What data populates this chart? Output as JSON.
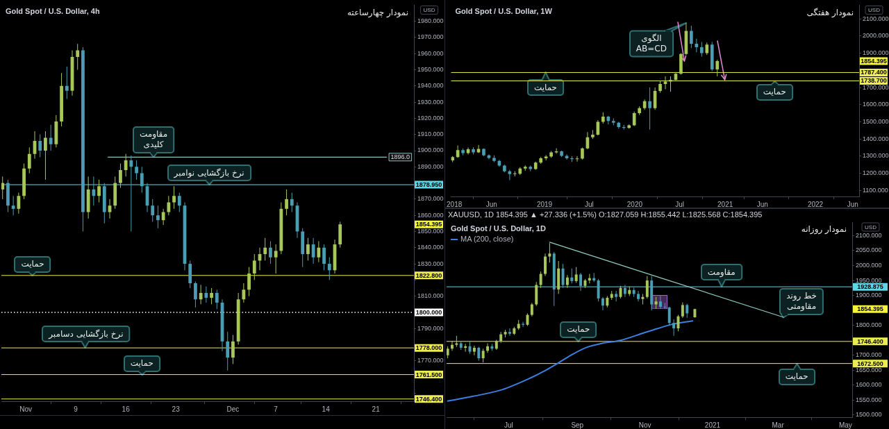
{
  "chart_data": [
    {
      "type": "candlestick",
      "title": "Gold Spot / U.S. Dollar, 4h",
      "subtitle": "نمودار چهارساعته",
      "ylabel": "USD",
      "xlim": [
        "2020-10-29T14:00",
        "2020-12-26T08:00"
      ],
      "xticks": [
        {
          "value": "2020-11-02",
          "label": "Nov"
        },
        {
          "value": "2020-11-09",
          "label": "9"
        },
        {
          "value": "2020-11-16",
          "label": "16"
        },
        {
          "value": "2020-11-23",
          "label": "23"
        },
        {
          "value": "2020-12-01",
          "label": "Dec"
        },
        {
          "value": "2020-12-07",
          "label": "7"
        },
        {
          "value": "2020-12-14",
          "label": "14"
        },
        {
          "value": "2020-12-21",
          "label": "21"
        }
      ],
      "ylim": [
        1745,
        1990
      ],
      "yticks": [
        {
          "value": 1750,
          "label": null
        },
        {
          "value": 1760,
          "label": null
        },
        {
          "value": 1770,
          "label": "1770.000"
        },
        {
          "value": 1780,
          "label": null
        },
        {
          "value": 1790,
          "label": "1790.000"
        },
        {
          "value": 1800,
          "label": null
        },
        {
          "value": 1810,
          "label": "1810.000"
        },
        {
          "value": 1820,
          "label": null
        },
        {
          "value": 1830,
          "label": "1830.000"
        },
        {
          "value": 1840,
          "label": "1840.000"
        },
        {
          "value": 1850,
          "label": "1850.000"
        },
        {
          "value": 1860,
          "label": "1860.000"
        },
        {
          "value": 1870,
          "label": "1870.000"
        },
        {
          "value": 1880,
          "label": null
        },
        {
          "value": 1890,
          "label": "1890.000"
        },
        {
          "value": 1900,
          "label": "1900.000"
        },
        {
          "value": 1910,
          "label": "1910.000"
        },
        {
          "value": 1920,
          "label": "1920.000"
        },
        {
          "value": 1930,
          "label": "1930.000"
        },
        {
          "value": 1940,
          "label": "1940.000"
        },
        {
          "value": 1950,
          "label": "1950.000"
        },
        {
          "value": 1960,
          "label": "1960.000"
        },
        {
          "value": 1970,
          "label": "1970.000"
        },
        {
          "value": 1980,
          "label": "1980.000"
        }
      ],
      "series": [
        {
          "x": [
            "2020-10-29T18:00",
            "2020-10-30T12:00",
            "2020-10-31T06:00",
            "2020-11-01T00:00",
            "2020-11-01T18:00",
            "2020-11-02T12:00",
            "2020-11-03T06:00",
            "2020-11-04T00:00",
            "2020-11-04T18:00",
            "2020-11-05T12:00",
            "2020-11-06T06:00",
            "2020-11-07T00:00",
            "2020-11-07T18:00",
            "2020-11-08T12:00",
            "2020-11-09T06:00",
            "2020-11-10T00:00",
            "2020-11-10T18:00",
            "2020-11-11T12:00",
            "2020-11-12T06:00",
            "2020-11-13T00:00",
            "2020-11-13T18:00",
            "2020-11-14T12:00",
            "2020-11-15T06:00",
            "2020-11-16T00:00",
            "2020-11-16T18:00",
            "2020-11-17T12:00",
            "2020-11-18T06:00",
            "2020-11-19T00:00",
            "2020-11-19T18:00",
            "2020-11-20T12:00",
            "2020-11-21T06:00",
            "2020-11-22T00:00",
            "2020-11-22T18:00",
            "2020-11-23T12:00",
            "2020-11-24T06:00",
            "2020-11-25T00:00",
            "2020-11-25T18:00",
            "2020-11-26T12:00",
            "2020-11-27T06:00",
            "2020-11-28T00:00",
            "2020-11-28T18:00",
            "2020-11-29T12:00",
            "2020-11-30T06:00",
            "2020-12-01T00:00",
            "2020-12-01T18:00",
            "2020-12-02T12:00",
            "2020-12-03T06:00",
            "2020-12-04T00:00",
            "2020-12-04T18:00",
            "2020-12-05T12:00",
            "2020-12-06T06:00",
            "2020-12-07T00:00",
            "2020-12-07T18:00",
            "2020-12-08T12:00",
            "2020-12-09T06:00",
            "2020-12-10T00:00",
            "2020-12-10T18:00",
            "2020-12-11T12:00",
            "2020-12-12T06:00",
            "2020-12-13T00:00",
            "2020-12-13T18:00",
            "2020-12-14T12:00",
            "2020-12-15T06:00",
            "2020-12-16T00:00"
          ],
          "ohlc": [
            [
              1876,
              1884,
              1870,
              1880
            ],
            [
              1880,
              1882,
              1862,
              1866
            ],
            [
              1866,
              1872,
              1860,
              1864
            ],
            [
              1864,
              1874,
              1861,
              1872
            ],
            [
              1872,
              1892,
              1870,
              1889
            ],
            [
              1889,
              1902,
              1886,
              1898
            ],
            [
              1898,
              1912,
              1895,
              1906
            ],
            [
              1906,
              1910,
              1896,
              1900
            ],
            [
              1900,
              1912,
              1882,
              1908
            ],
            [
              1908,
              1916,
              1900,
              1904
            ],
            [
              1904,
              1922,
              1902,
              1918
            ],
            [
              1918,
              1948,
              1915,
              1940
            ],
            [
              1940,
              1952,
              1932,
              1937
            ],
            [
              1937,
              1962,
              1934,
              1958
            ],
            [
              1958,
              1966,
              1950,
              1962
            ],
            [
              1962,
              1964,
              1850,
              1862
            ],
            [
              1862,
              1884,
              1858,
              1876
            ],
            [
              1876,
              1884,
              1866,
              1872
            ],
            [
              1872,
              1882,
              1868,
              1878
            ],
            [
              1878,
              1880,
              1855,
              1862
            ],
            [
              1862,
              1870,
              1858,
              1866
            ],
            [
              1866,
              1884,
              1864,
              1880
            ],
            [
              1880,
              1892,
              1877,
              1888
            ],
            [
              1888,
              1898,
              1884,
              1894
            ],
            [
              1894,
              1897,
              1850,
              1890
            ],
            [
              1890,
              1894,
              1882,
              1886
            ],
            [
              1886,
              1890,
              1874,
              1878
            ],
            [
              1878,
              1880,
              1862,
              1866
            ],
            [
              1866,
              1870,
              1856,
              1860
            ],
            [
              1860,
              1866,
              1852,
              1857
            ],
            [
              1857,
              1864,
              1854,
              1862
            ],
            [
              1862,
              1872,
              1860,
              1868
            ],
            [
              1868,
              1878,
              1864,
              1872
            ],
            [
              1872,
              1874,
              1862,
              1866
            ],
            [
              1866,
              1868,
              1826,
              1830
            ],
            [
              1830,
              1832,
              1815,
              1818
            ],
            [
              1818,
              1819,
              1803,
              1808
            ],
            [
              1808,
              1817,
              1805,
              1812
            ],
            [
              1812,
              1816,
              1806,
              1809
            ],
            [
              1809,
              1815,
              1805,
              1812
            ],
            [
              1812,
              1814,
              1802,
              1806
            ],
            [
              1806,
              1808,
              1776,
              1782
            ],
            [
              1782,
              1788,
              1764,
              1772
            ],
            [
              1772,
              1786,
              1768,
              1782
            ],
            [
              1782,
              1812,
              1780,
              1808
            ],
            [
              1808,
              1818,
              1806,
              1814
            ],
            [
              1814,
              1828,
              1810,
              1824
            ],
            [
              1824,
              1836,
              1820,
              1832
            ],
            [
              1832,
              1840,
              1826,
              1836
            ],
            [
              1836,
              1846,
              1832,
              1840
            ],
            [
              1840,
              1844,
              1830,
              1834
            ],
            [
              1834,
              1842,
              1824,
              1838
            ],
            [
              1838,
              1868,
              1836,
              1864
            ],
            [
              1864,
              1876,
              1860,
              1870
            ],
            [
              1870,
              1874,
              1862,
              1866
            ],
            [
              1866,
              1868,
              1846,
              1850
            ],
            [
              1850,
              1852,
              1828,
              1836
            ],
            [
              1836,
              1846,
              1832,
              1842
            ],
            [
              1842,
              1846,
              1830,
              1834
            ],
            [
              1834,
              1844,
              1831,
              1840
            ],
            [
              1840,
              1842,
              1826,
              1830
            ],
            [
              1830,
              1834,
              1820,
              1826
            ],
            [
              1826,
              1845,
              1824,
              1842
            ],
            [
              1842,
              1856,
              1840,
              1854.395
            ]
          ],
          "colors": [
            "#a7c75a",
            "#4a9eb3",
            "#4a9eb3",
            "#a7c75a",
            "#a7c75a",
            "#a7c75a",
            "#a7c75a",
            "#4a9eb3",
            "#a7c75a",
            "#4a9eb3",
            "#a7c75a",
            "#a7c75a",
            "#4a9eb3",
            "#a7c75a",
            "#a7c75a",
            "#4a9eb3",
            "#a7c75a",
            "#4a9eb3",
            "#a7c75a",
            "#4a9eb3",
            "#a7c75a",
            "#a7c75a",
            "#a7c75a",
            "#a7c75a",
            "#4a9eb3",
            "#4a9eb3",
            "#4a9eb3",
            "#4a9eb3",
            "#4a9eb3",
            "#4a9eb3",
            "#a7c75a",
            "#a7c75a",
            "#a7c75a",
            "#4a9eb3",
            "#4a9eb3",
            "#4a9eb3",
            "#4a9eb3",
            "#a7c75a",
            "#4a9eb3",
            "#a7c75a",
            "#4a9eb3",
            "#4a9eb3",
            "#4a9eb3",
            "#a7c75a",
            "#a7c75a",
            "#a7c75a",
            "#a7c75a",
            "#a7c75a",
            "#a7c75a",
            "#a7c75a",
            "#4a9eb3",
            "#a7c75a",
            "#a7c75a",
            "#a7c75a",
            "#4a9eb3",
            "#4a9eb3",
            "#4a9eb3",
            "#a7c75a",
            "#4a9eb3",
            "#a7c75a",
            "#4a9eb3",
            "#4a9eb3",
            "#a7c75a",
            "#a7c75a"
          ]
        },
        {
          "type": "line",
          "color": "#8fbcc0",
          "x": [
            "2020-11-13T12:00",
            "2020-12-22T12:00"
          ],
          "values": [
            1896,
            1896
          ],
          "value_labels": [
            null,
            "1896.0"
          ]
        }
      ],
      "ref_lines": [
        {
          "axis": "y",
          "value": 1878.95,
          "label": "1878.950",
          "color": "#5fd6e4"
        },
        {
          "axis": "y",
          "value": 1822.8,
          "label": "1822.800",
          "color": "#ecec50"
        },
        {
          "axis": "y",
          "value": 1800,
          "label": "1800.000",
          "color": "#ffffff",
          "line_style": "dotted"
        },
        {
          "axis": "y",
          "value": 1778,
          "label": "1778.000",
          "color": "#ecec50"
        },
        {
          "axis": "y",
          "value": 1761.5,
          "label": "1761.500",
          "color": "#ecec50"
        },
        {
          "axis": "y",
          "value": 1746.4,
          "label": "1746.400",
          "color": "#ecec50"
        }
      ],
      "annotations": [
        {
          "text": "مقاومت\nکلیدی",
          "x": "2020-11-19T21:00",
          "y": 1896
        },
        {
          "text": "نرخ بازگشایی نوامبر",
          "x": "2020-11-27T16:00",
          "y": 1878.95
        },
        {
          "text": "حمایت",
          "x": "2020-11-02T23:00",
          "y": 1822.8
        },
        {
          "text": "نرخ بازگشایی دسامبر",
          "x": "2020-11-10T08:00",
          "y": 1778
        },
        {
          "text": "حمایت",
          "x": "2020-11-18T06:00",
          "y": 1761.5
        },
        "1854.395"
      ]
    },
    {
      "type": "candlestick",
      "title": "Gold Spot / U.S. Dollar, 1W",
      "subtitle": "نمودار هفتگی",
      "ylabel": "USD",
      "xlim": [
        "2017-12-19",
        "2022-06-27"
      ],
      "xticks": [
        {
          "value": "2018-01-01",
          "label": "2018"
        },
        {
          "value": "2018-06-01",
          "label": "Jun"
        },
        {
          "value": "2019-01-01",
          "label": "2019"
        },
        {
          "value": "2019-07-01",
          "label": "Jul"
        },
        {
          "value": "2020-01-01",
          "label": "2020"
        },
        {
          "value": "2020-07-01",
          "label": "Jul"
        },
        {
          "value": "2021-01-01",
          "label": "2021"
        },
        {
          "value": "2021-06-01",
          "label": "Jun"
        },
        {
          "value": "2022-01-01",
          "label": "2022"
        },
        {
          "value": "2022-06-01",
          "label": "Jun"
        }
      ],
      "ylim": [
        1065,
        2180
      ],
      "yticks": [
        {
          "value": 1100,
          "label": "1100.000"
        },
        {
          "value": 1200,
          "label": "1200.000"
        },
        {
          "value": 1300,
          "label": "1300.000"
        },
        {
          "value": 1400,
          "label": "1400.000"
        },
        {
          "value": 1500,
          "label": "1500.000"
        },
        {
          "value": 1600,
          "label": "1600.000"
        },
        {
          "value": 1700,
          "label": "1700.000"
        },
        {
          "value": 1800,
          "label": null
        },
        {
          "value": 1900,
          "label": "1900.000"
        },
        {
          "value": 2000,
          "label": "2000.000"
        },
        {
          "value": 2100,
          "label": "2100.000"
        }
      ],
      "series": [
        {
          "x": [
            "2017-12-25",
            "2018-01-15",
            "2018-02-05",
            "2018-02-26",
            "2018-03-19",
            "2018-04-09",
            "2018-04-30",
            "2018-05-21",
            "2018-06-11",
            "2018-07-02",
            "2018-07-23",
            "2018-08-13",
            "2018-09-03",
            "2018-09-24",
            "2018-10-15",
            "2018-11-05",
            "2018-11-26",
            "2018-12-17",
            "2019-01-07",
            "2019-01-28",
            "2019-02-18",
            "2019-03-11",
            "2019-04-01",
            "2019-04-22",
            "2019-05-13",
            "2019-06-03",
            "2019-06-24",
            "2019-07-15",
            "2019-08-05",
            "2019-08-26",
            "2019-09-16",
            "2019-10-07",
            "2019-10-28",
            "2019-11-18",
            "2019-12-09",
            "2019-12-30",
            "2020-01-20",
            "2020-02-10",
            "2020-03-02",
            "2020-03-23",
            "2020-04-13",
            "2020-05-04",
            "2020-05-25",
            "2020-06-15",
            "2020-07-06",
            "2020-07-27",
            "2020-08-17",
            "2020-09-07",
            "2020-09-28",
            "2020-10-19",
            "2020-11-09",
            "2020-11-30"
          ],
          "ohlc": [
            [
              1275,
              1300,
              1265,
              1295
            ],
            [
              1295,
              1362,
              1290,
              1335
            ],
            [
              1335,
              1345,
              1305,
              1318
            ],
            [
              1318,
              1350,
              1310,
              1340
            ],
            [
              1340,
              1352,
              1310,
              1322
            ],
            [
              1322,
              1365,
              1318,
              1342
            ],
            [
              1342,
              1345,
              1300,
              1305
            ],
            [
              1305,
              1310,
              1282,
              1290
            ],
            [
              1290,
              1305,
              1265,
              1272
            ],
            [
              1272,
              1278,
              1238,
              1245
            ],
            [
              1245,
              1250,
              1205,
              1212
            ],
            [
              1212,
              1220,
              1160,
              1195
            ],
            [
              1195,
              1212,
              1182,
              1198
            ],
            [
              1198,
              1236,
              1190,
              1228
            ],
            [
              1228,
              1246,
              1215,
              1238
            ],
            [
              1238,
              1245,
              1212,
              1225
            ],
            [
              1225,
              1268,
              1220,
              1262
            ],
            [
              1262,
              1295,
              1255,
              1288
            ],
            [
              1288,
              1306,
              1275,
              1298
            ],
            [
              1298,
              1330,
              1290,
              1322
            ],
            [
              1322,
              1346,
              1315,
              1328
            ],
            [
              1328,
              1332,
              1295,
              1302
            ],
            [
              1302,
              1310,
              1280,
              1288
            ],
            [
              1288,
              1300,
              1266,
              1282
            ],
            [
              1282,
              1300,
              1268,
              1285
            ],
            [
              1285,
              1350,
              1280,
              1345
            ],
            [
              1345,
              1440,
              1340,
              1410
            ],
            [
              1410,
              1452,
              1400,
              1425
            ],
            [
              1425,
              1510,
              1420,
              1500
            ],
            [
              1500,
              1555,
              1490,
              1530
            ],
            [
              1530,
              1535,
              1485,
              1505
            ],
            [
              1505,
              1520,
              1480,
              1495
            ],
            [
              1495,
              1500,
              1460,
              1470
            ],
            [
              1470,
              1482,
              1455,
              1465
            ],
            [
              1465,
              1485,
              1460,
              1480
            ],
            [
              1480,
              1560,
              1475,
              1550
            ],
            [
              1550,
              1590,
              1540,
              1580
            ],
            [
              1580,
              1630,
              1570,
              1620
            ],
            [
              1620,
              1700,
              1455,
              1580
            ],
            [
              1580,
              1700,
              1570,
              1680
            ],
            [
              1680,
              1740,
              1670,
              1720
            ],
            [
              1720,
              1765,
              1690,
              1735
            ],
            [
              1735,
              1765,
              1675,
              1745
            ],
            [
              1745,
              1790,
              1740,
              1780
            ],
            [
              1780,
              1900,
              1775,
              1895
            ],
            [
              1895,
              2075,
              1890,
              2030
            ],
            [
              2030,
              2060,
              1930,
              1955
            ],
            [
              1955,
              1985,
              1905,
              1935
            ],
            [
              1935,
              1965,
              1880,
              1900
            ],
            [
              1900,
              1962,
              1890,
              1950
            ],
            [
              1950,
              1965,
              1795,
              1805
            ],
            [
              1805,
              1862,
              1765,
              1854.395
            ]
          ],
          "colors": [
            "#a7c75a",
            "#a7c75a",
            "#4a9eb3",
            "#a7c75a",
            "#4a9eb3",
            "#a7c75a",
            "#4a9eb3",
            "#4a9eb3",
            "#4a9eb3",
            "#4a9eb3",
            "#4a9eb3",
            "#4a9eb3",
            "#a7c75a",
            "#a7c75a",
            "#a7c75a",
            "#4a9eb3",
            "#a7c75a",
            "#a7c75a",
            "#a7c75a",
            "#a7c75a",
            "#a7c75a",
            "#4a9eb3",
            "#4a9eb3",
            "#4a9eb3",
            "#a7c75a",
            "#a7c75a",
            "#a7c75a",
            "#a7c75a",
            "#a7c75a",
            "#a7c75a",
            "#4a9eb3",
            "#4a9eb3",
            "#4a9eb3",
            "#4a9eb3",
            "#a7c75a",
            "#a7c75a",
            "#a7c75a",
            "#a7c75a",
            "#4a9eb3",
            "#a7c75a",
            "#a7c75a",
            "#a7c75a",
            "#a7c75a",
            "#a7c75a",
            "#a7c75a",
            "#a7c75a",
            "#4a9eb3",
            "#4a9eb3",
            "#4a9eb3",
            "#a7c75a",
            "#4a9eb3",
            "#a7c75a"
          ]
        }
      ],
      "ref_lines": [
        {
          "axis": "y",
          "value": 1787.4,
          "label": "1787.400",
          "color": "#ecec50"
        },
        {
          "axis": "y",
          "value": 1738.7,
          "label": "1738.700",
          "color": "#ecec50"
        }
      ],
      "annotations": [
        {
          "text": "الگوی\nAB=CD",
          "x": "2020-07-27",
          "y": 2075
        },
        {
          "text": "حمایت",
          "x": "2019-01-05",
          "y": 1787.4
        },
        {
          "text": "حمایت",
          "x": "2021-07-20",
          "y": 1738.7
        },
        "1854.395"
      ]
    },
    {
      "type": "candlestick",
      "title": "Gold Spot / U.S. Dollar, 1D",
      "subtitle": "نمودار روزانه",
      "ylabel": "USD",
      "legend": "top left",
      "xlim": [
        "2020-05-06",
        "2021-05-07"
      ],
      "xticks": [
        {
          "value": "2020-07-01",
          "label": "Jul"
        },
        {
          "value": "2020-09-01",
          "label": "Sep"
        },
        {
          "value": "2020-11-01",
          "label": "Nov"
        },
        {
          "value": "2021-01-01",
          "label": "2021"
        },
        {
          "value": "2021-03-01",
          "label": "Mar"
        },
        {
          "value": "2021-05-01",
          "label": "May"
        }
      ],
      "ylim": [
        1493,
        2145
      ],
      "yticks": [
        {
          "value": 1500,
          "label": "1500.000"
        },
        {
          "value": 1550,
          "label": "1550.000"
        },
        {
          "value": 1600,
          "label": "1600.000"
        },
        {
          "value": 1650,
          "label": "1650.000"
        },
        {
          "value": 1700,
          "label": "1700.000"
        },
        {
          "value": 1750,
          "label": null
        },
        {
          "value": 1800,
          "label": "1800.000"
        },
        {
          "value": 1850,
          "label": null
        },
        {
          "value": 1900,
          "label": "1900.000"
        },
        {
          "value": 1950,
          "label": "1950.000"
        },
        {
          "value": 2000,
          "label": "2000.000"
        },
        {
          "value": 2050,
          "label": "2050.000"
        },
        {
          "value": 2100,
          "label": "2100.000"
        }
      ],
      "series": [
        {
          "x": [
            "2020-05-07",
            "2020-05-11",
            "2020-05-15",
            "2020-05-19",
            "2020-05-23",
            "2020-05-27",
            "2020-05-31",
            "2020-06-04",
            "2020-06-08",
            "2020-06-12",
            "2020-06-16",
            "2020-06-20",
            "2020-06-24",
            "2020-06-28",
            "2020-07-02",
            "2020-07-06",
            "2020-07-10",
            "2020-07-14",
            "2020-07-18",
            "2020-07-22",
            "2020-07-26",
            "2020-07-30",
            "2020-08-03",
            "2020-08-07",
            "2020-08-11",
            "2020-08-15",
            "2020-08-19",
            "2020-08-23",
            "2020-08-27",
            "2020-08-31",
            "2020-09-04",
            "2020-09-08",
            "2020-09-12",
            "2020-09-16",
            "2020-09-20",
            "2020-09-24",
            "2020-09-28",
            "2020-10-02",
            "2020-10-06",
            "2020-10-10",
            "2020-10-14",
            "2020-10-18",
            "2020-10-22",
            "2020-10-26",
            "2020-10-30",
            "2020-11-03",
            "2020-11-07",
            "2020-11-11",
            "2020-11-15",
            "2020-11-19",
            "2020-11-23",
            "2020-11-27",
            "2020-12-01",
            "2020-12-05",
            "2020-12-09",
            "2020-12-16"
          ],
          "ohlc": [
            [
              1700,
              1730,
              1690,
              1722
            ],
            [
              1722,
              1748,
              1715,
              1735
            ],
            [
              1735,
              1765,
              1728,
              1740
            ],
            [
              1740,
              1748,
              1718,
              1725
            ],
            [
              1725,
              1738,
              1712,
              1730
            ],
            [
              1730,
              1745,
              1705,
              1712
            ],
            [
              1712,
              1732,
              1700,
              1725
            ],
            [
              1725,
              1728,
              1682,
              1690
            ],
            [
              1690,
              1722,
              1676,
              1715
            ],
            [
              1715,
              1740,
              1708,
              1730
            ],
            [
              1730,
              1738,
              1715,
              1722
            ],
            [
              1722,
              1752,
              1718,
              1748
            ],
            [
              1748,
              1778,
              1742,
              1770
            ],
            [
              1770,
              1785,
              1760,
              1778
            ],
            [
              1778,
              1790,
              1765,
              1772
            ],
            [
              1772,
              1795,
              1768,
              1790
            ],
            [
              1790,
              1818,
              1785,
              1805
            ],
            [
              1805,
              1812,
              1795,
              1802
            ],
            [
              1802,
              1840,
              1798,
              1835
            ],
            [
              1835,
              1875,
              1830,
              1870
            ],
            [
              1870,
              1945,
              1865,
              1935
            ],
            [
              1935,
              1980,
              1925,
              1972
            ],
            [
              1972,
              2040,
              1965,
              2030
            ],
            [
              2030,
              2075,
              2010,
              2040
            ],
            [
              2040,
              2045,
              1865,
              1920
            ],
            [
              1920,
              2015,
              1905,
              1990
            ],
            [
              1990,
              2005,
              1925,
              1935
            ],
            [
              1935,
              1968,
              1925,
              1960
            ],
            [
              1960,
              1990,
              1940,
              1948
            ],
            [
              1948,
              1995,
              1942,
              1970
            ],
            [
              1970,
              1975,
              1915,
              1932
            ],
            [
              1932,
              1955,
              1925,
              1950
            ],
            [
              1950,
              1972,
              1940,
              1958
            ],
            [
              1958,
              1975,
              1945,
              1950
            ],
            [
              1950,
              1955,
              1880,
              1890
            ],
            [
              1890,
              1895,
              1850,
              1866
            ],
            [
              1866,
              1898,
              1860,
              1892
            ],
            [
              1892,
              1915,
              1885,
              1905
            ],
            [
              1905,
              1915,
              1880,
              1895
            ],
            [
              1895,
              1932,
              1890,
              1925
            ],
            [
              1925,
              1935,
              1895,
              1905
            ],
            [
              1905,
              1930,
              1898,
              1918
            ],
            [
              1918,
              1926,
              1895,
              1905
            ],
            [
              1905,
              1915,
              1880,
              1888
            ],
            [
              1888,
              1905,
              1870,
              1895
            ],
            [
              1895,
              1965,
              1890,
              1950
            ],
            [
              1950,
              1965,
              1850,
              1870
            ],
            [
              1870,
              1895,
              1855,
              1880
            ],
            [
              1880,
              1898,
              1855,
              1862
            ],
            [
              1862,
              1875,
              1855,
              1860
            ],
            [
              1860,
              1862,
              1800,
              1808
            ],
            [
              1808,
              1820,
              1765,
              1790
            ],
            [
              1790,
              1835,
              1780,
              1830
            ],
            [
              1830,
              1877,
              1825,
              1868
            ],
            [
              1868,
              1872,
              1825,
              1840
            ],
            [
              1827.059,
              1855.442,
              1825.568,
              1854.395
            ]
          ],
          "colors": [
            "#a7c75a",
            "#a7c75a",
            "#a7c75a",
            "#4a9eb3",
            "#a7c75a",
            "#4a9eb3",
            "#a7c75a",
            "#4a9eb3",
            "#a7c75a",
            "#a7c75a",
            "#4a9eb3",
            "#a7c75a",
            "#a7c75a",
            "#a7c75a",
            "#4a9eb3",
            "#a7c75a",
            "#a7c75a",
            "#4a9eb3",
            "#a7c75a",
            "#a7c75a",
            "#a7c75a",
            "#a7c75a",
            "#a7c75a",
            "#a7c75a",
            "#4a9eb3",
            "#a7c75a",
            "#4a9eb3",
            "#a7c75a",
            "#4a9eb3",
            "#a7c75a",
            "#4a9eb3",
            "#a7c75a",
            "#a7c75a",
            "#4a9eb3",
            "#4a9eb3",
            "#4a9eb3",
            "#a7c75a",
            "#a7c75a",
            "#4a9eb3",
            "#a7c75a",
            "#4a9eb3",
            "#a7c75a",
            "#4a9eb3",
            "#4a9eb3",
            "#a7c75a",
            "#a7c75a",
            "#4a9eb3",
            "#a7c75a",
            "#4a9eb3",
            "#4a9eb3",
            "#4a9eb3",
            "#4a9eb3",
            "#a7c75a",
            "#a7c75a",
            "#4a9eb3",
            "#a7c75a"
          ]
        },
        {
          "type": "line",
          "name": "MA (200, close)",
          "color": "#3c7fe0",
          "x": [
            "2020-05-07",
            "2020-05-30",
            "2020-06-25",
            "2020-07-20",
            "2020-08-02",
            "2020-08-15",
            "2020-08-28",
            "2020-09-09",
            "2020-09-22",
            "2020-10-10",
            "2020-10-31",
            "2020-11-12",
            "2020-11-25",
            "2020-12-14"
          ],
          "values": [
            1547,
            1563,
            1585,
            1623,
            1647,
            1675,
            1704,
            1726,
            1739,
            1750,
            1775,
            1789,
            1803,
            1815
          ]
        },
        {
          "type": "line",
          "color": "#8ecbc0",
          "x": [
            "2020-08-07",
            "2021-03-06"
          ],
          "values": [
            2078,
            1827
          ]
        }
      ],
      "ref_lines": [
        {
          "axis": "y",
          "value": 1928.875,
          "label": "1928.875",
          "color": "#5fd6e4"
        },
        {
          "axis": "y",
          "value": 1746.4,
          "label": "1746.400",
          "color": "#ecec50"
        },
        {
          "axis": "y",
          "value": 1672.5,
          "label": "1672.500",
          "color": "#ecec50"
        }
      ],
      "annotations": [
        "XAUUSD, 1D 1854.395 ▲ +27.336 (+1.5%) O:1827.059 H:1855.442 L:1825.568 C:1854.395",
        {
          "text": "مقاومت",
          "x": "2021-01-09",
          "y": 1928.875
        },
        {
          "text": "خط روند\nمقاومتی",
          "x": "2021-03-06",
          "y": 1827
        },
        {
          "text": "حمایت",
          "x": "2020-09-02",
          "y": 1746.4
        },
        {
          "text": "حمایت",
          "x": "2021-03-18",
          "y": 1672.5
        },
        "1854.395"
      ]
    }
  ]
}
